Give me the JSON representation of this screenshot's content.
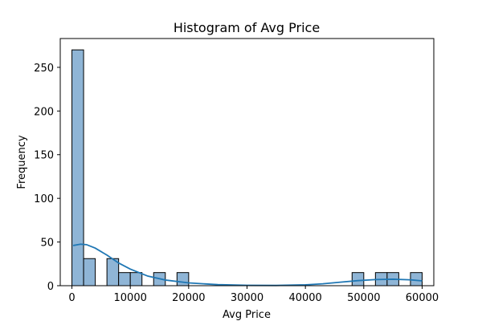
{
  "chart_data": {
    "type": "bar",
    "title": "Histogram of Avg Price",
    "xlabel": "Avg Price",
    "ylabel": "Frequency",
    "xlim": [
      -2000,
      62000
    ],
    "ylim": [
      0,
      283
    ],
    "x_ticks": [
      0,
      10000,
      20000,
      30000,
      40000,
      50000,
      60000
    ],
    "y_ticks": [
      0,
      50,
      100,
      150,
      200,
      250
    ],
    "grid": false,
    "legend": "none",
    "bin_width": 2000,
    "bins": [
      {
        "start": 0,
        "end": 2000,
        "count": 270
      },
      {
        "start": 2000,
        "end": 4000,
        "count": 31
      },
      {
        "start": 6000,
        "end": 8000,
        "count": 31
      },
      {
        "start": 8000,
        "end": 10000,
        "count": 15
      },
      {
        "start": 10000,
        "end": 12000,
        "count": 15
      },
      {
        "start": 14000,
        "end": 16000,
        "count": 15
      },
      {
        "start": 18000,
        "end": 20000,
        "count": 15
      },
      {
        "start": 48000,
        "end": 50000,
        "count": 15
      },
      {
        "start": 52000,
        "end": 54000,
        "count": 15
      },
      {
        "start": 54000,
        "end": 56000,
        "count": 15
      },
      {
        "start": 58000,
        "end": 60000,
        "count": 15
      }
    ],
    "kde": {
      "x": [
        200,
        1500,
        2500,
        4000,
        6000,
        8000,
        10000,
        13000,
        16000,
        20000,
        25000,
        30000,
        35000,
        40000,
        43000,
        46000,
        49000,
        52000,
        55000,
        58000,
        60000
      ],
      "y": [
        46,
        47.5,
        47,
        43,
        35,
        26,
        19,
        11,
        6.5,
        3.2,
        1.2,
        0.4,
        0.3,
        1,
        2.2,
        4,
        5.8,
        7,
        7.4,
        6.7,
        5.5
      ]
    },
    "colors": {
      "bar_fill": "#8fb5d6",
      "bar_edge": "#000000",
      "kde_line": "#1f77b4",
      "axis": "#000000"
    }
  }
}
